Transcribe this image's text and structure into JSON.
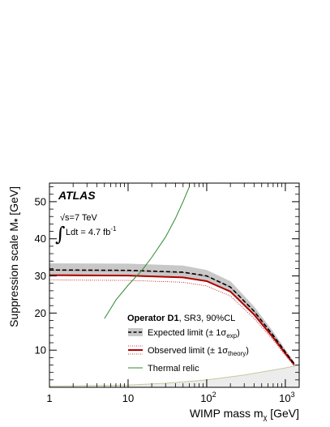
{
  "chart_data": {
    "type": "line",
    "xscale": "log",
    "xlim": [
      1,
      1500
    ],
    "ylim": [
      0,
      55
    ],
    "x_ticks": [
      {
        "value": 1,
        "base": "1",
        "exp": ""
      },
      {
        "value": 10,
        "base": "10",
        "exp": ""
      },
      {
        "value": 100,
        "base": "10",
        "exp": "2"
      },
      {
        "value": 1000,
        "base": "10",
        "exp": "3"
      }
    ],
    "y_ticks": [
      10,
      20,
      30,
      40,
      50
    ],
    "xlabel": {
      "main": "WIMP mass m",
      "sub": "χ",
      "unit": " [GeV]"
    },
    "ylabel": {
      "main": "Suppression scale M",
      "sub": "*",
      "unit": " [GeV]"
    },
    "experiment": "ATLAS",
    "energy": {
      "prefix": "√s=7 TeV"
    },
    "lumi": {
      "prefix": "Ldt = 4.7 fb",
      "sup": "-1"
    },
    "legend_header": {
      "bold": "Operator D1",
      "rest": ", SR3, 90%CL"
    },
    "legend": [
      {
        "kind": "expected",
        "text": "Expected limit (± 1σ",
        "sub": "exp",
        "tail": ")",
        "color": "#000000"
      },
      {
        "kind": "observed",
        "text": "Observed limit (± 1σ",
        "sub": "theory",
        "tail": ")",
        "color": "#b00000"
      },
      {
        "kind": "relic",
        "text": "Thermal relic",
        "sub": "",
        "tail": "",
        "color": "#2e8b2e"
      }
    ],
    "series": [
      {
        "kind": "expected",
        "x": [
          1,
          10,
          50,
          100,
          200,
          400,
          700,
          1000,
          1300
        ],
        "y": [
          31.6,
          31.5,
          31.0,
          30.0,
          27.0,
          20.5,
          14.0,
          9.5,
          6.3
        ],
        "band_low": [
          30.0,
          29.9,
          29.4,
          28.5,
          25.5,
          19.2,
          13.0,
          8.8,
          5.8
        ],
        "band_high": [
          33.4,
          33.3,
          32.8,
          31.6,
          28.6,
          21.8,
          15.0,
          10.2,
          6.8
        ]
      },
      {
        "kind": "observed",
        "x": [
          1,
          10,
          50,
          100,
          200,
          400,
          700,
          1000,
          1300
        ],
        "y": [
          30.2,
          30.1,
          29.6,
          28.6,
          25.8,
          19.6,
          13.4,
          9.1,
          6.1
        ],
        "theory_low": [
          28.9,
          28.8,
          28.3,
          27.3,
          24.6,
          18.6,
          12.7,
          8.6,
          5.7
        ],
        "theory_high": [
          31.5,
          31.4,
          30.9,
          29.9,
          27.0,
          20.6,
          14.1,
          9.6,
          6.5
        ]
      },
      {
        "kind": "relic",
        "x": [
          5,
          7,
          10,
          15,
          20,
          30,
          40,
          50,
          60
        ],
        "y": [
          18.5,
          23.5,
          27.5,
          31.5,
          35.0,
          40.5,
          45.5,
          50.0,
          54.0
        ]
      }
    ],
    "excluded_region": {
      "x": [
        1,
        10,
        30,
        100,
        300,
        1000,
        1500
      ],
      "y": [
        0.3,
        0.6,
        1.1,
        2.0,
        3.3,
        5.2,
        6.0
      ],
      "fill": "#ececec",
      "edge": "#c8c8a0"
    },
    "colors": {
      "band": "#c8c8c8",
      "axis": "#000000"
    },
    "grid": false
  }
}
